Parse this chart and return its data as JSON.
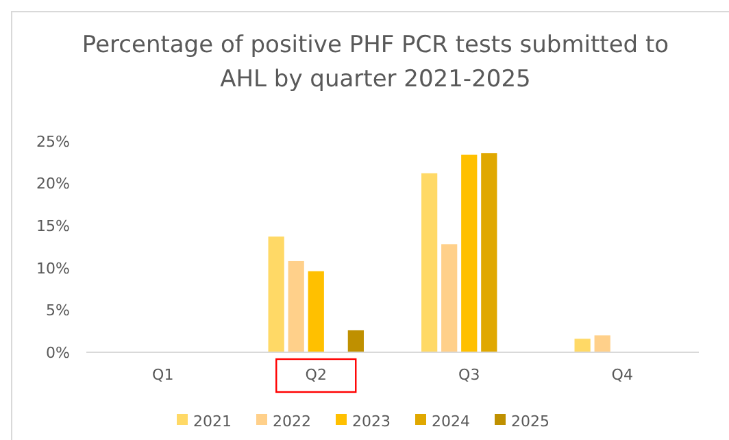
{
  "chart_data": {
    "type": "bar",
    "title": "Percentage of positive PHF PCR tests submitted to AHL by quarter 2021-2025",
    "categories": [
      "Q1",
      "Q2",
      "Q3",
      "Q4"
    ],
    "series": [
      {
        "name": "2021",
        "color": "#ffd966",
        "values": [
          null,
          13.7,
          21.2,
          1.6
        ]
      },
      {
        "name": "2022",
        "color": "#ffd08a",
        "values": [
          null,
          10.8,
          12.8,
          2.0
        ]
      },
      {
        "name": "2023",
        "color": "#ffc000",
        "values": [
          null,
          9.6,
          23.4,
          null
        ]
      },
      {
        "name": "2024",
        "color": "#e0a800",
        "values": [
          null,
          null,
          23.6,
          null
        ]
      },
      {
        "name": "2025",
        "color": "#bf9000",
        "values": [
          null,
          2.6,
          null,
          null
        ]
      }
    ],
    "ylim": [
      0,
      25
    ],
    "yticks": [
      {
        "value": 0,
        "label": "0%"
      },
      {
        "value": 5,
        "label": "5%"
      },
      {
        "value": 10,
        "label": "10%"
      },
      {
        "value": 15,
        "label": "15%"
      },
      {
        "value": 20,
        "label": "20%"
      },
      {
        "value": 25,
        "label": "25%"
      }
    ],
    "grid": false,
    "legend": "bottom"
  }
}
